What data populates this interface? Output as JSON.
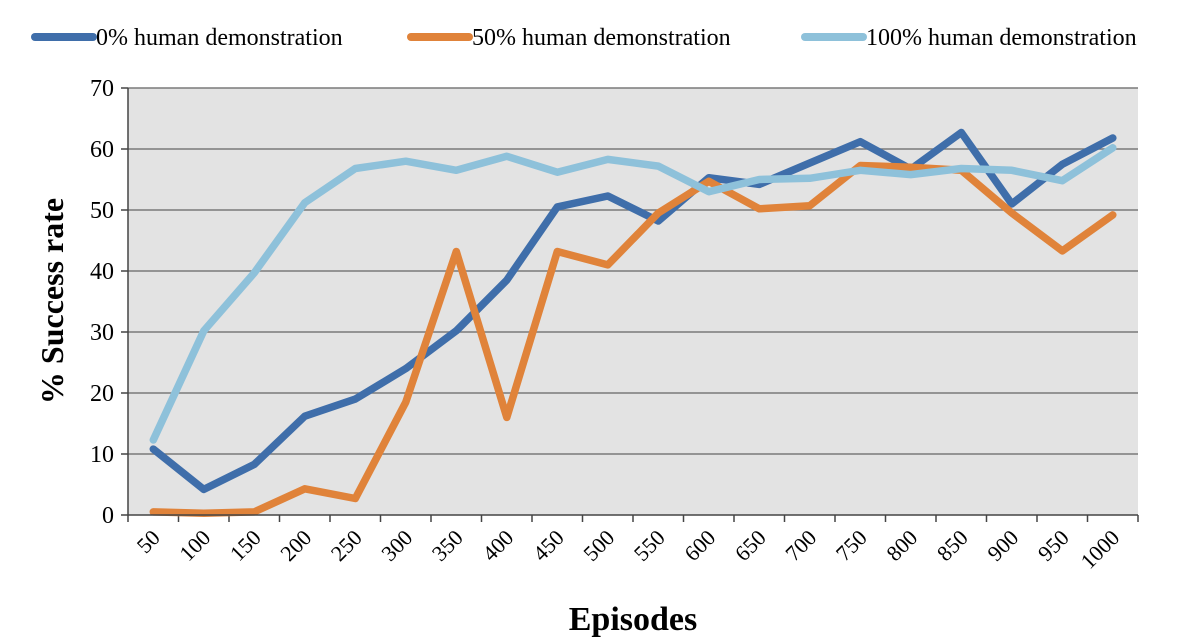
{
  "chart_data": {
    "type": "line",
    "title": "",
    "xlabel": "Episodes",
    "ylabel": "% Success rate",
    "ylim": [
      0,
      70
    ],
    "yticks": [
      0,
      10,
      20,
      30,
      40,
      50,
      60,
      70
    ],
    "grid": true,
    "legend_position": "top",
    "categories": [
      "50",
      "100",
      "150",
      "200",
      "250",
      "300",
      "350",
      "400",
      "450",
      "500",
      "550",
      "600",
      "650",
      "700",
      "750",
      "800",
      "850",
      "900",
      "950",
      "1000"
    ],
    "series": [
      {
        "name": "0% human demonstration",
        "color": "#3F6EAA",
        "values": [
          10.8,
          4.2,
          8.3,
          16.2,
          19.0,
          24.0,
          30.2,
          38.5,
          50.5,
          52.3,
          48.2,
          55.3,
          54.2,
          57.7,
          61.2,
          56.7,
          62.7,
          51.0,
          57.5,
          61.8
        ]
      },
      {
        "name": "50% human demonstration",
        "color": "#E0833A",
        "values": [
          0.5,
          0.3,
          0.5,
          4.3,
          2.7,
          18.5,
          43.2,
          16.0,
          43.2,
          41.0,
          49.5,
          54.7,
          50.2,
          50.7,
          57.3,
          57.0,
          56.5,
          49.5,
          43.3,
          49.2
        ]
      },
      {
        "name": "100% human demonstration",
        "color": "#8EC1DA",
        "values": [
          12.3,
          30.2,
          39.7,
          51.2,
          56.8,
          58.0,
          56.5,
          58.8,
          56.2,
          58.3,
          57.2,
          53.0,
          55.0,
          55.2,
          56.5,
          55.8,
          56.8,
          56.5,
          54.8,
          60.2
        ]
      }
    ]
  }
}
